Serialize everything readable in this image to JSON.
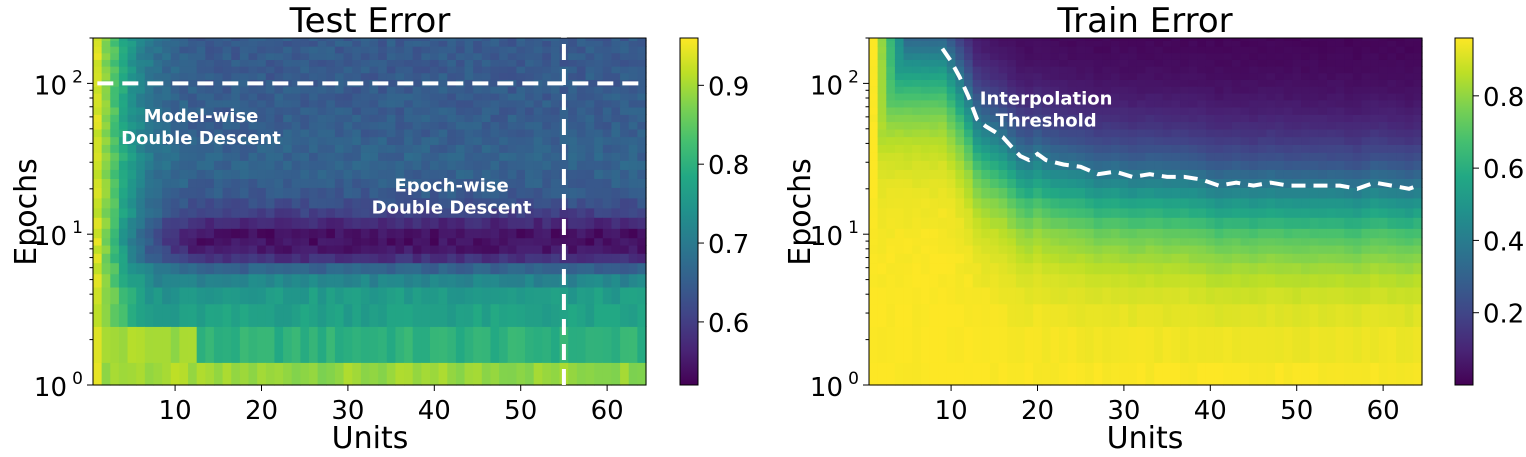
{
  "chart_data": [
    {
      "type": "heatmap",
      "title": "Test Error",
      "xlabel": "Units",
      "ylabel": "Epochs",
      "x_range": [
        1,
        64
      ],
      "y_range": [
        1,
        200
      ],
      "y_scale": "log",
      "x_ticks": [
        10,
        20,
        30,
        40,
        50,
        60
      ],
      "y_ticks": [
        {
          "value": 1,
          "base": "10",
          "exp": "0"
        },
        {
          "value": 10,
          "base": "10",
          "exp": "1"
        },
        {
          "value": 100,
          "base": "10",
          "exp": "2"
        }
      ],
      "colormap": "viridis",
      "colorbar": {
        "min": 0.52,
        "max": 0.96,
        "ticks": [
          "0.6",
          "0.7",
          "0.8",
          "0.9"
        ]
      },
      "epoch_profile": [
        {
          "epoch": 1,
          "value": 0.89
        },
        {
          "epoch": 1.5,
          "value": 0.88
        },
        {
          "epoch": 2,
          "value": 0.8
        },
        {
          "epoch": 2.5,
          "value": 0.78
        },
        {
          "epoch": 3,
          "value": 0.77
        },
        {
          "epoch": 4,
          "value": 0.76
        },
        {
          "epoch": 5,
          "value": 0.72
        },
        {
          "epoch": 6,
          "value": 0.66
        },
        {
          "epoch": 7,
          "value": 0.58
        },
        {
          "epoch": 8,
          "value": 0.55
        },
        {
          "epoch": 9,
          "value": 0.54
        },
        {
          "epoch": 10,
          "value": 0.54
        },
        {
          "epoch": 12,
          "value": 0.57
        },
        {
          "epoch": 15,
          "value": 0.62
        },
        {
          "epoch": 20,
          "value": 0.65
        },
        {
          "epoch": 30,
          "value": 0.66
        },
        {
          "epoch": 50,
          "value": 0.65
        },
        {
          "epoch": 100,
          "value": 0.645
        },
        {
          "epoch": 200,
          "value": 0.645
        }
      ],
      "small_width_values": [
        0.93,
        0.9,
        0.87,
        0.83,
        0.8,
        0.77,
        0.75,
        0.73,
        0.72,
        0.71,
        0.7,
        0.69
      ],
      "annotations": [
        {
          "text_lines": [
            "Model-wise",
            "Double Descent"
          ],
          "units": 13,
          "epochs": 52
        },
        {
          "text_lines": [
            "Epoch-wise",
            "Double Descent"
          ],
          "units": 42,
          "epochs": 18
        }
      ],
      "arrows": [
        {
          "name": "model-wise-arrow",
          "from": [
            1,
            100
          ],
          "to": [
            65,
            100
          ]
        },
        {
          "name": "epoch-wise-arrow",
          "from": [
            55,
            1
          ],
          "to": [
            55,
            210
          ]
        }
      ]
    },
    {
      "type": "heatmap",
      "title": "Train Error",
      "xlabel": "Units",
      "ylabel": "Epochs",
      "x_range": [
        1,
        64
      ],
      "y_range": [
        1,
        200
      ],
      "y_scale": "log",
      "x_ticks": [
        10,
        20,
        30,
        40,
        50,
        60
      ],
      "y_ticks": [
        {
          "value": 1,
          "base": "10",
          "exp": "0"
        },
        {
          "value": 10,
          "base": "10",
          "exp": "1"
        },
        {
          "value": 100,
          "base": "10",
          "exp": "2"
        }
      ],
      "colormap": "viridis",
      "colorbar": {
        "min": 0.0,
        "max": 0.96,
        "ticks": [
          "0.2",
          "0.4",
          "0.6",
          "0.8"
        ]
      },
      "annotations": [
        {
          "text_lines": [
            "Interpolation",
            "Threshold"
          ],
          "units": 21,
          "epochs": 68
        }
      ],
      "interpolation_threshold": [
        {
          "units": 9,
          "epochs": 170
        },
        {
          "units": 10,
          "epochs": 140
        },
        {
          "units": 11,
          "epochs": 110
        },
        {
          "units": 12,
          "epochs": 82
        },
        {
          "units": 13,
          "epochs": 58
        },
        {
          "units": 14,
          "epochs": 52
        },
        {
          "units": 15,
          "epochs": 48
        },
        {
          "units": 16,
          "epochs": 44
        },
        {
          "units": 17,
          "epochs": 38
        },
        {
          "units": 18,
          "epochs": 33
        },
        {
          "units": 19,
          "epochs": 31
        },
        {
          "units": 20,
          "epochs": 34
        },
        {
          "units": 21,
          "epochs": 31
        },
        {
          "units": 23,
          "epochs": 29
        },
        {
          "units": 25,
          "epochs": 28
        },
        {
          "units": 27,
          "epochs": 25
        },
        {
          "units": 29,
          "epochs": 26
        },
        {
          "units": 31,
          "epochs": 24
        },
        {
          "units": 33,
          "epochs": 25
        },
        {
          "units": 35,
          "epochs": 24
        },
        {
          "units": 37,
          "epochs": 24
        },
        {
          "units": 39,
          "epochs": 23
        },
        {
          "units": 41,
          "epochs": 21
        },
        {
          "units": 43,
          "epochs": 22
        },
        {
          "units": 45,
          "epochs": 21
        },
        {
          "units": 47,
          "epochs": 22
        },
        {
          "units": 49,
          "epochs": 21
        },
        {
          "units": 51,
          "epochs": 21
        },
        {
          "units": 53,
          "epochs": 21
        },
        {
          "units": 55,
          "epochs": 21
        },
        {
          "units": 57,
          "epochs": 20
        },
        {
          "units": 59,
          "epochs": 22
        },
        {
          "units": 61,
          "epochs": 21
        },
        {
          "units": 63,
          "epochs": 20
        },
        {
          "units": 64,
          "epochs": 21
        }
      ]
    }
  ]
}
